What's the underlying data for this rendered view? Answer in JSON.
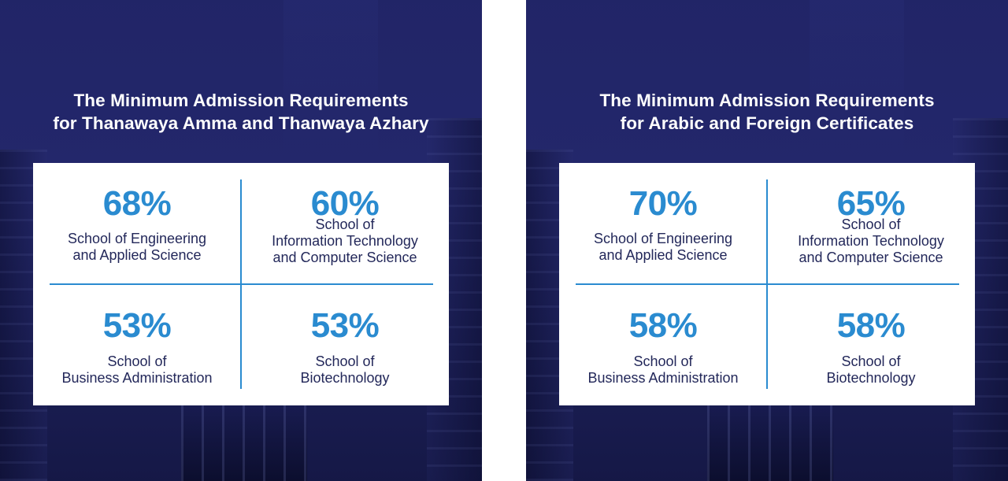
{
  "colors": {
    "panel_background": "#23276b",
    "accent_blue": "#2a8bd0",
    "school_text": "#23285a",
    "title_text": "#ffffff"
  },
  "panels": [
    {
      "title_lines": [
        "The Minimum Admission Requirements",
        "for Thanawaya Amma and Thanwaya Azhary"
      ],
      "requirements": [
        {
          "percent": "68%",
          "school_lines": [
            "School of Engineering",
            "and Applied Science"
          ]
        },
        {
          "percent": "60%",
          "school_lines": [
            "School of",
            "Information Technology",
            "and Computer Science"
          ]
        },
        {
          "percent": "53%",
          "school_lines": [
            "School of",
            "Business Administration"
          ]
        },
        {
          "percent": "53%",
          "school_lines": [
            "School of",
            "Biotechnology"
          ]
        }
      ]
    },
    {
      "title_lines": [
        "The Minimum Admission Requirements",
        "for Arabic and Foreign Certificates"
      ],
      "requirements": [
        {
          "percent": "70%",
          "school_lines": [
            "School of Engineering",
            "and Applied Science"
          ]
        },
        {
          "percent": "65%",
          "school_lines": [
            "School of",
            "Information Technology",
            "and Computer Science"
          ]
        },
        {
          "percent": "58%",
          "school_lines": [
            "School of",
            "Business Administration"
          ]
        },
        {
          "percent": "58%",
          "school_lines": [
            "School of",
            "Biotechnology"
          ]
        }
      ]
    }
  ]
}
